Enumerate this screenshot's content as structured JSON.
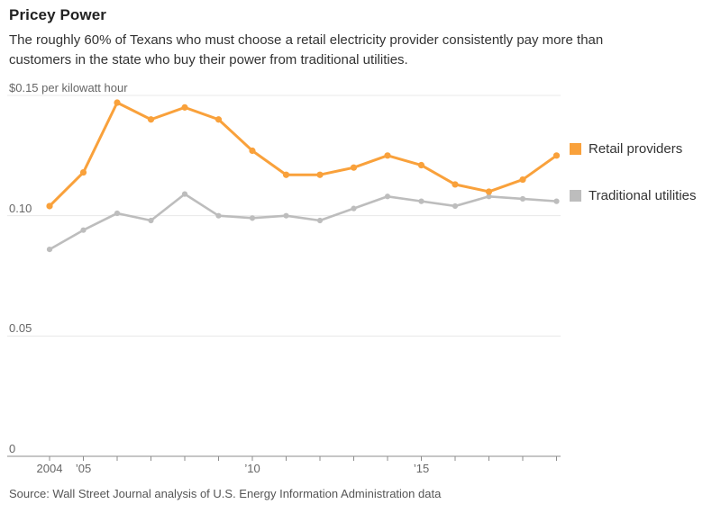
{
  "header": {
    "title": "Pricey Power",
    "subtitle": "The roughly 60% of Texans who must choose a retail electricity provider consistently pay more than\ncustomers in the state who buy their power from traditional utilities."
  },
  "chart_data": {
    "type": "line",
    "title": "Pricey Power",
    "ylabel": "$0.15 per kilowatt hour",
    "xlabel": "",
    "x": [
      2004,
      2005,
      2006,
      2007,
      2008,
      2009,
      2010,
      2011,
      2012,
      2013,
      2014,
      2015,
      2016,
      2017,
      2018,
      2019
    ],
    "series": [
      {
        "name": "Retail providers",
        "color": "#F9A13B",
        "line_width": 3,
        "dot_radius": 3.6,
        "values": [
          0.104,
          0.118,
          0.147,
          0.14,
          0.145,
          0.14,
          0.127,
          0.117,
          0.117,
          0.12,
          0.125,
          0.121,
          0.113,
          0.11,
          0.115,
          0.125
        ]
      },
      {
        "name": "Traditional utilities",
        "color": "#BDBDBD",
        "line_width": 2.6,
        "dot_radius": 3.1,
        "values": [
          0.086,
          0.094,
          0.101,
          0.098,
          0.109,
          0.1,
          0.099,
          0.1,
          0.098,
          0.103,
          0.108,
          0.106,
          0.104,
          0.108,
          0.107,
          0.106
        ]
      }
    ],
    "ylim": [
      0,
      0.15
    ],
    "yticks": [
      {
        "value": 0,
        "label": "0"
      },
      {
        "value": 0.05,
        "label": "0.05"
      },
      {
        "value": 0.1,
        "label": "0.10"
      },
      {
        "value": 0.15,
        "label": "$0.15 per kilowatt hour"
      }
    ],
    "xticks_labeled": [
      {
        "year": 2004,
        "label": "2004"
      },
      {
        "year": 2005,
        "label": "’05"
      },
      {
        "year": 2010,
        "label": "’10"
      },
      {
        "year": 2015,
        "label": "’15"
      }
    ],
    "grid": true,
    "grid_color": "#E8E8E8",
    "axis_color": "#8C8C8C",
    "legend_position": "right"
  },
  "source": "Source: Wall Street Journal analysis of U.S. Energy Information Administration data"
}
